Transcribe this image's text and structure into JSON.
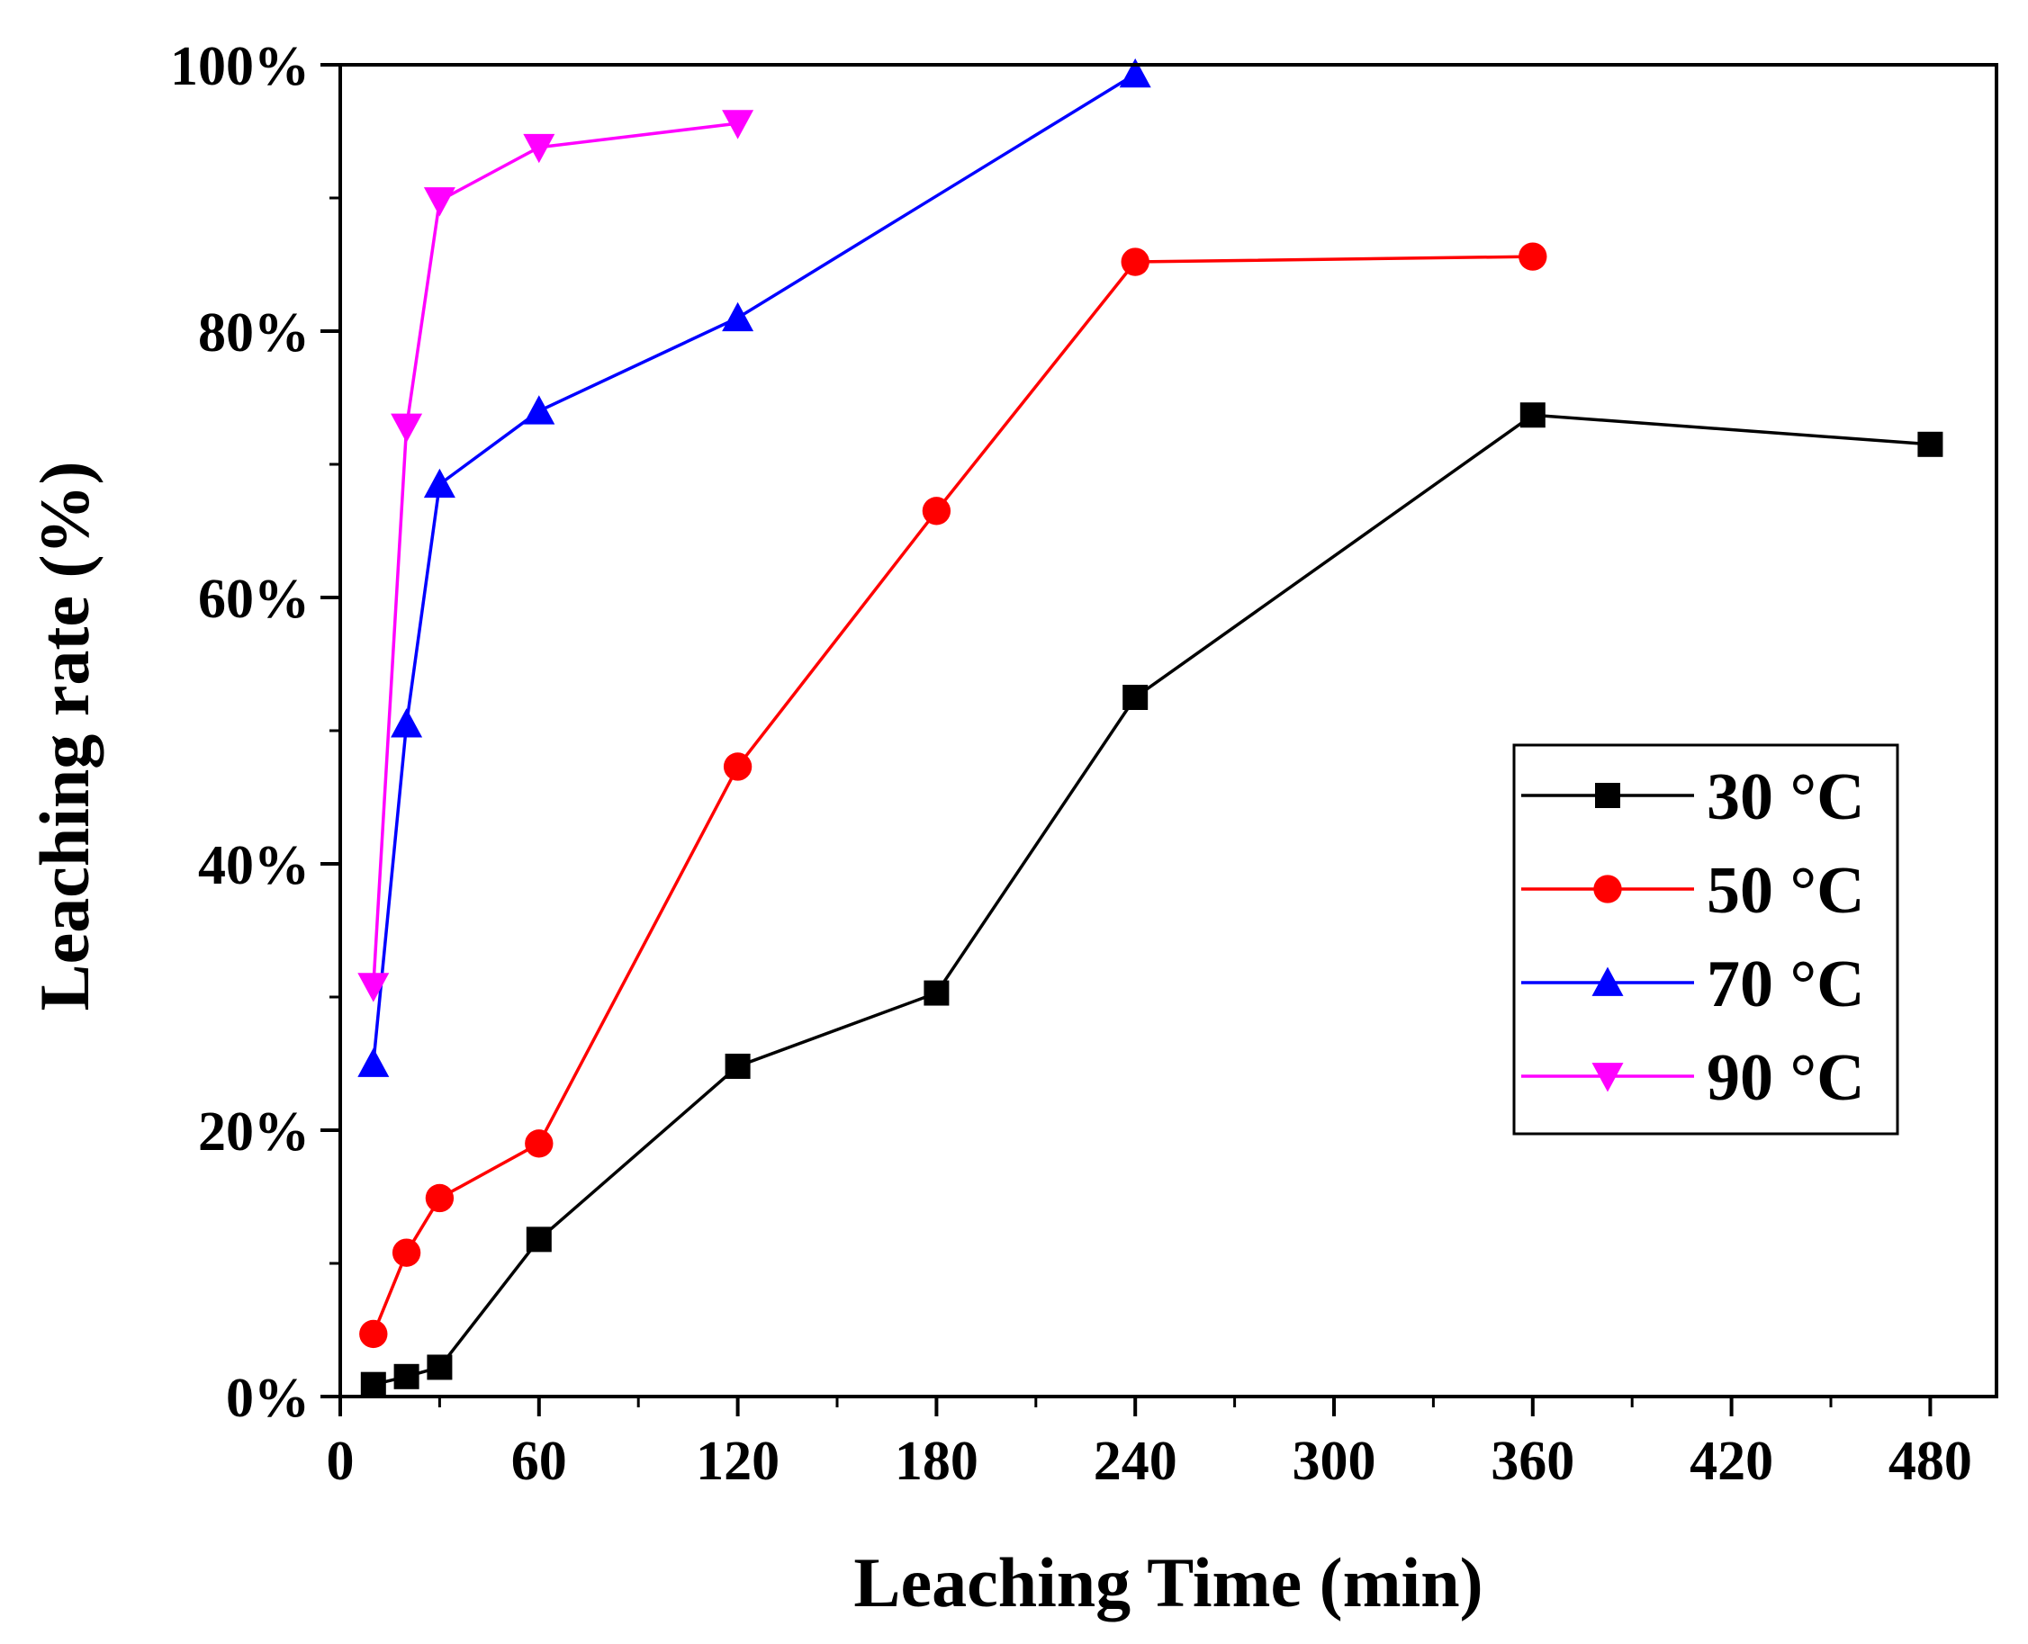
{
  "chart_data": {
    "type": "line",
    "title": "",
    "xlabel": "Leaching Time (min)",
    "ylabel": "Leaching rate (%)",
    "xlim": [
      0,
      500
    ],
    "ylim": [
      0,
      100
    ],
    "x_ticks": [
      0,
      60,
      120,
      180,
      240,
      300,
      360,
      420,
      480
    ],
    "x_tick_labels": [
      "0",
      "60",
      "120",
      "180",
      "240",
      "300",
      "360",
      "420",
      "480"
    ],
    "y_ticks": [
      0,
      20,
      40,
      60,
      80,
      100
    ],
    "y_tick_labels": [
      "0%",
      "20%",
      "40%",
      "60%",
      "80%",
      "100%"
    ],
    "grid": false,
    "legend_position": "right",
    "series": [
      {
        "name": "30 °C",
        "color": "#000000",
        "marker": "square",
        "x": [
          10,
          20,
          30,
          60,
          120,
          180,
          240,
          360,
          480
        ],
        "values": [
          0.9,
          1.5,
          2.2,
          11.8,
          24.8,
          30.3,
          52.5,
          73.7,
          71.5
        ]
      },
      {
        "name": "50 °C",
        "color": "#ff0000",
        "marker": "circle",
        "x": [
          10,
          20,
          30,
          60,
          120,
          180,
          240,
          360
        ],
        "values": [
          4.7,
          10.8,
          14.9,
          19.0,
          47.3,
          66.5,
          85.2,
          85.6
        ]
      },
      {
        "name": "70 °C",
        "color": "#0000ff",
        "marker": "triangle-up",
        "x": [
          10,
          20,
          30,
          60,
          120,
          240
        ],
        "values": [
          25.0,
          50.5,
          68.5,
          74.0,
          81.0,
          99.3
        ]
      },
      {
        "name": "90 °C",
        "color": "#ff00ff",
        "marker": "triangle-down",
        "x": [
          10,
          20,
          30,
          60,
          120
        ],
        "values": [
          30.8,
          72.8,
          89.8,
          93.8,
          95.6
        ]
      }
    ]
  }
}
